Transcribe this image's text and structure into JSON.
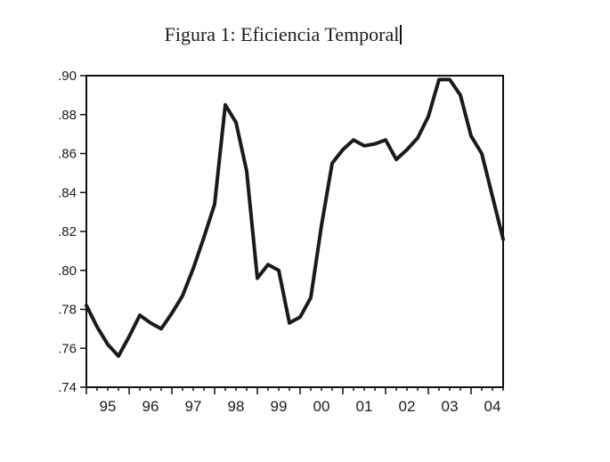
{
  "page": {
    "background": "#ffffff"
  },
  "title": {
    "text": "Figura 1: Eficiencia Temporal",
    "cursor": "|"
  },
  "chart_data": {
    "type": "line",
    "title": "Figura 1: Eficiencia Temporal",
    "frequency": "quarterly",
    "x_range": [
      "1995Q1",
      "2004Q4"
    ],
    "x_tick_labels": [
      "95",
      "96",
      "97",
      "98",
      "99",
      "00",
      "01",
      "02",
      "03",
      "04"
    ],
    "y_tick_labels": [
      ".74",
      ".76",
      ".78",
      ".80",
      ".82",
      ".84",
      ".86",
      ".88",
      ".90"
    ],
    "y_ticks": [
      0.74,
      0.76,
      0.78,
      0.8,
      0.82,
      0.84,
      0.86,
      0.88,
      0.9
    ],
    "ylim": [
      0.74,
      0.9
    ],
    "grid": false,
    "legend": "none",
    "line_color": "#1a1a1a",
    "frame_color": "#111111",
    "line_width": 4,
    "series": [
      {
        "name": "Eficiencia Temporal",
        "x": [
          "1995Q1",
          "1995Q2",
          "1995Q3",
          "1995Q4",
          "1996Q1",
          "1996Q2",
          "1996Q3",
          "1996Q4",
          "1997Q1",
          "1997Q2",
          "1997Q3",
          "1997Q4",
          "1998Q1",
          "1998Q2",
          "1998Q3",
          "1998Q4",
          "1999Q1",
          "1999Q2",
          "1999Q3",
          "1999Q4",
          "2000Q1",
          "2000Q2",
          "2000Q3",
          "2000Q4",
          "2001Q1",
          "2001Q2",
          "2001Q3",
          "2001Q4",
          "2002Q1",
          "2002Q2",
          "2002Q3",
          "2002Q4",
          "2003Q1",
          "2003Q2",
          "2003Q3",
          "2003Q4",
          "2004Q1",
          "2004Q2",
          "2004Q3",
          "2004Q4"
        ],
        "values": [
          0.782,
          0.771,
          0.762,
          0.756,
          0.766,
          0.777,
          0.773,
          0.77,
          0.778,
          0.787,
          0.801,
          0.817,
          0.834,
          0.885,
          0.876,
          0.851,
          0.796,
          0.803,
          0.8,
          0.773,
          0.776,
          0.786,
          0.823,
          0.855,
          0.862,
          0.867,
          0.864,
          0.865,
          0.867,
          0.857,
          0.862,
          0.868,
          0.879,
          0.898,
          0.898,
          0.89,
          0.869,
          0.86,
          0.838,
          0.816
        ]
      }
    ]
  }
}
